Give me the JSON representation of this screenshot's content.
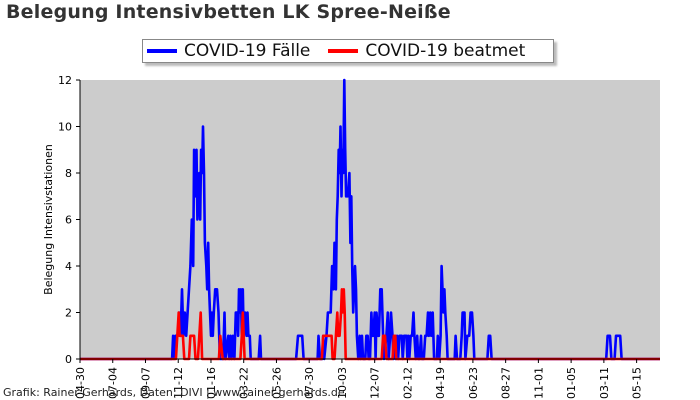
{
  "chart_data": {
    "type": "line",
    "title": "Belegung Intensivbetten LK Spree-Neiße",
    "ylabel": "Belegung Intensivstationen",
    "xlabel": "",
    "ylim": [
      0,
      12
    ],
    "yticks": [
      0,
      2,
      4,
      6,
      8,
      10,
      12
    ],
    "x_tick_labels": [
      "04-30",
      "07-04",
      "09-07",
      "11-12",
      "01-16",
      "03-22",
      "05-26",
      "07-30",
      "10-03",
      "12-07",
      "02-12",
      "04-19",
      "06-23",
      "08-27",
      "11-01",
      "01-05",
      "03-11",
      "05-15"
    ],
    "x_tick_positions": [
      0,
      7,
      14,
      21,
      28,
      35,
      42,
      49,
      56,
      63,
      70,
      77,
      84,
      91,
      98,
      105,
      112,
      119
    ],
    "x_range": [
      0,
      124
    ],
    "x_unit": "weeks from 04-30",
    "grid": false,
    "legend_position": "top",
    "background": "#cccccc",
    "series": [
      {
        "name": "COVID-19 Fälle",
        "color": "#0000ff",
        "points": [
          [
            0,
            0
          ],
          [
            19.7,
            0
          ],
          [
            19.9,
            1
          ],
          [
            20.1,
            0
          ],
          [
            20.4,
            1
          ],
          [
            20.9,
            1
          ],
          [
            21.2,
            2
          ],
          [
            21.5,
            1
          ],
          [
            21.8,
            3
          ],
          [
            22.1,
            1
          ],
          [
            22.4,
            2
          ],
          [
            22.7,
            1
          ],
          [
            23,
            2
          ],
          [
            23.3,
            3
          ],
          [
            23.6,
            4
          ],
          [
            23.9,
            6
          ],
          [
            24.2,
            4
          ],
          [
            24.4,
            9
          ],
          [
            24.7,
            7
          ],
          [
            24.9,
            9
          ],
          [
            25.1,
            6
          ],
          [
            25.3,
            7
          ],
          [
            25.5,
            8
          ],
          [
            25.7,
            6
          ],
          [
            25.9,
            9
          ],
          [
            26.1,
            8
          ],
          [
            26.3,
            10
          ],
          [
            26.5,
            8
          ],
          [
            26.7,
            5
          ],
          [
            27,
            4
          ],
          [
            27.2,
            3
          ],
          [
            27.4,
            5
          ],
          [
            27.6,
            3
          ],
          [
            27.8,
            2
          ],
          [
            28,
            1
          ],
          [
            28.2,
            2
          ],
          [
            28.4,
            1
          ],
          [
            28.6,
            2
          ],
          [
            28.9,
            3
          ],
          [
            29.3,
            3
          ],
          [
            29.6,
            2
          ],
          [
            29.9,
            0
          ],
          [
            30.6,
            0
          ],
          [
            30.9,
            2
          ],
          [
            31.1,
            0
          ],
          [
            31.7,
            1
          ],
          [
            31.9,
            0
          ],
          [
            32.2,
            1
          ],
          [
            32.4,
            0
          ],
          [
            32.7,
            1
          ],
          [
            33,
            0
          ],
          [
            33.3,
            2
          ],
          [
            33.6,
            2
          ],
          [
            33.8,
            1
          ],
          [
            34,
            3
          ],
          [
            34.2,
            2
          ],
          [
            34.4,
            3
          ],
          [
            34.6,
            1
          ],
          [
            34.8,
            3
          ],
          [
            35,
            1
          ],
          [
            35.3,
            2
          ],
          [
            35.6,
            1
          ],
          [
            35.8,
            2
          ],
          [
            36,
            1
          ],
          [
            36.3,
            1
          ],
          [
            36.5,
            0
          ],
          [
            38.2,
            0
          ],
          [
            38.5,
            1
          ],
          [
            38.7,
            0
          ],
          [
            46.2,
            0
          ],
          [
            46.6,
            1
          ],
          [
            47.5,
            1
          ],
          [
            47.8,
            0
          ],
          [
            50.8,
            0
          ],
          [
            51,
            1
          ],
          [
            51.3,
            0
          ],
          [
            51.8,
            0
          ],
          [
            52,
            1
          ],
          [
            52.2,
            0
          ],
          [
            52.7,
            1
          ],
          [
            53,
            2
          ],
          [
            53.6,
            2
          ],
          [
            53.9,
            4
          ],
          [
            54.2,
            3
          ],
          [
            54.4,
            5
          ],
          [
            54.7,
            3
          ],
          [
            54.9,
            6
          ],
          [
            55.1,
            7
          ],
          [
            55.3,
            9
          ],
          [
            55.5,
            8
          ],
          [
            55.7,
            10
          ],
          [
            55.9,
            7
          ],
          [
            56.1,
            9
          ],
          [
            56.3,
            8
          ],
          [
            56.5,
            12
          ],
          [
            56.7,
            9
          ],
          [
            56.9,
            7
          ],
          [
            57.3,
            7
          ],
          [
            57.6,
            8
          ],
          [
            57.8,
            5
          ],
          [
            58,
            7
          ],
          [
            58.2,
            4
          ],
          [
            58.4,
            2
          ],
          [
            58.6,
            3
          ],
          [
            58.8,
            4
          ],
          [
            59,
            3
          ],
          [
            59.2,
            1
          ],
          [
            59.5,
            0
          ],
          [
            59.8,
            1
          ],
          [
            60,
            0
          ],
          [
            60.3,
            1
          ],
          [
            60.5,
            0
          ],
          [
            61,
            0
          ],
          [
            61.2,
            1
          ],
          [
            61.5,
            1
          ],
          [
            61.7,
            0
          ],
          [
            62,
            0
          ],
          [
            62.3,
            2
          ],
          [
            62.5,
            1
          ],
          [
            62.7,
            1
          ],
          [
            63,
            2
          ],
          [
            63.2,
            0
          ],
          [
            63.4,
            2
          ],
          [
            63.7,
            1
          ],
          [
            63.9,
            1
          ],
          [
            64.2,
            3
          ],
          [
            64.5,
            3
          ],
          [
            64.8,
            1
          ],
          [
            65,
            0
          ],
          [
            65.5,
            1
          ],
          [
            65.8,
            2
          ],
          [
            66,
            0
          ],
          [
            66.3,
            1
          ],
          [
            66.5,
            2
          ],
          [
            66.8,
            1
          ],
          [
            67,
            0
          ],
          [
            67.3,
            1
          ],
          [
            67.5,
            0
          ],
          [
            67.8,
            1
          ],
          [
            68,
            0
          ],
          [
            68.3,
            1
          ],
          [
            68.8,
            1
          ],
          [
            69,
            0
          ],
          [
            69.3,
            1
          ],
          [
            69.8,
            1
          ],
          [
            70,
            0
          ],
          [
            70.2,
            1
          ],
          [
            70.4,
            0
          ],
          [
            70.7,
            1
          ],
          [
            71,
            1
          ],
          [
            71.3,
            2
          ],
          [
            71.5,
            1
          ],
          [
            71.8,
            0
          ],
          [
            72.1,
            1
          ],
          [
            72.3,
            0
          ],
          [
            72.6,
            0
          ],
          [
            72.9,
            1
          ],
          [
            73.1,
            0
          ],
          [
            73.5,
            0
          ],
          [
            73.8,
            1
          ],
          [
            74.1,
            1
          ],
          [
            74.4,
            2
          ],
          [
            74.6,
            1
          ],
          [
            74.9,
            2
          ],
          [
            75.1,
            1
          ],
          [
            75.4,
            2
          ],
          [
            75.7,
            0
          ],
          [
            76.3,
            0
          ],
          [
            76.5,
            1
          ],
          [
            76.8,
            0
          ],
          [
            77.1,
            1
          ],
          [
            77.3,
            4
          ],
          [
            77.5,
            3
          ],
          [
            77.7,
            2
          ],
          [
            77.9,
            3
          ],
          [
            78.1,
            2
          ],
          [
            78.4,
            1
          ],
          [
            78.6,
            0
          ],
          [
            80.1,
            0
          ],
          [
            80.3,
            1
          ],
          [
            80.6,
            0
          ],
          [
            81.3,
            0
          ],
          [
            81.6,
            1
          ],
          [
            81.8,
            2
          ],
          [
            82.2,
            2
          ],
          [
            82.4,
            0
          ],
          [
            82.8,
            1
          ],
          [
            83.2,
            1
          ],
          [
            83.5,
            2
          ],
          [
            83.8,
            2
          ],
          [
            84.1,
            1
          ],
          [
            84.3,
            0
          ],
          [
            87.1,
            0
          ],
          [
            87.4,
            1
          ],
          [
            87.7,
            1
          ],
          [
            88,
            0
          ],
          [
            112.5,
            0
          ],
          [
            112.8,
            1
          ],
          [
            113.3,
            1
          ],
          [
            113.6,
            0
          ],
          [
            114.3,
            0
          ],
          [
            114.6,
            1
          ],
          [
            115.5,
            1
          ],
          [
            115.8,
            0
          ],
          [
            124,
            0
          ]
        ]
      },
      {
        "name": "COVID-19 beatmet",
        "color": "#ff0000",
        "points": [
          [
            0,
            0
          ],
          [
            20.5,
            0
          ],
          [
            20.8,
            1
          ],
          [
            21.1,
            2
          ],
          [
            21.3,
            1
          ],
          [
            22,
            1
          ],
          [
            22.3,
            0
          ],
          [
            23.3,
            0
          ],
          [
            23.6,
            1
          ],
          [
            24.4,
            1
          ],
          [
            24.7,
            0
          ],
          [
            25.2,
            0
          ],
          [
            25.5,
            1
          ],
          [
            25.8,
            2
          ],
          [
            26.1,
            0
          ],
          [
            29.7,
            0
          ],
          [
            30,
            1
          ],
          [
            30.5,
            0
          ],
          [
            34.3,
            0
          ],
          [
            34.6,
            1
          ],
          [
            34.8,
            2
          ],
          [
            35,
            1
          ],
          [
            35.2,
            0
          ],
          [
            51.7,
            0
          ],
          [
            52,
            1
          ],
          [
            53.8,
            1
          ],
          [
            54,
            0
          ],
          [
            54.4,
            0
          ],
          [
            54.7,
            1
          ],
          [
            55,
            2
          ],
          [
            55.2,
            1
          ],
          [
            55.5,
            1
          ],
          [
            55.8,
            2
          ],
          [
            56,
            3
          ],
          [
            56.2,
            2
          ],
          [
            56.4,
            3
          ],
          [
            56.6,
            2
          ],
          [
            56.8,
            0
          ],
          [
            64.5,
            0
          ],
          [
            64.8,
            1
          ],
          [
            65.2,
            1
          ],
          [
            65.5,
            0
          ],
          [
            66.8,
            0
          ],
          [
            67.1,
            1
          ],
          [
            67.4,
            1
          ],
          [
            67.6,
            0
          ],
          [
            124,
            0
          ]
        ]
      }
    ]
  },
  "footer": "Grafik: Rainer Gerhards, Daten: DIVI | www.rainer-gerhards.de"
}
